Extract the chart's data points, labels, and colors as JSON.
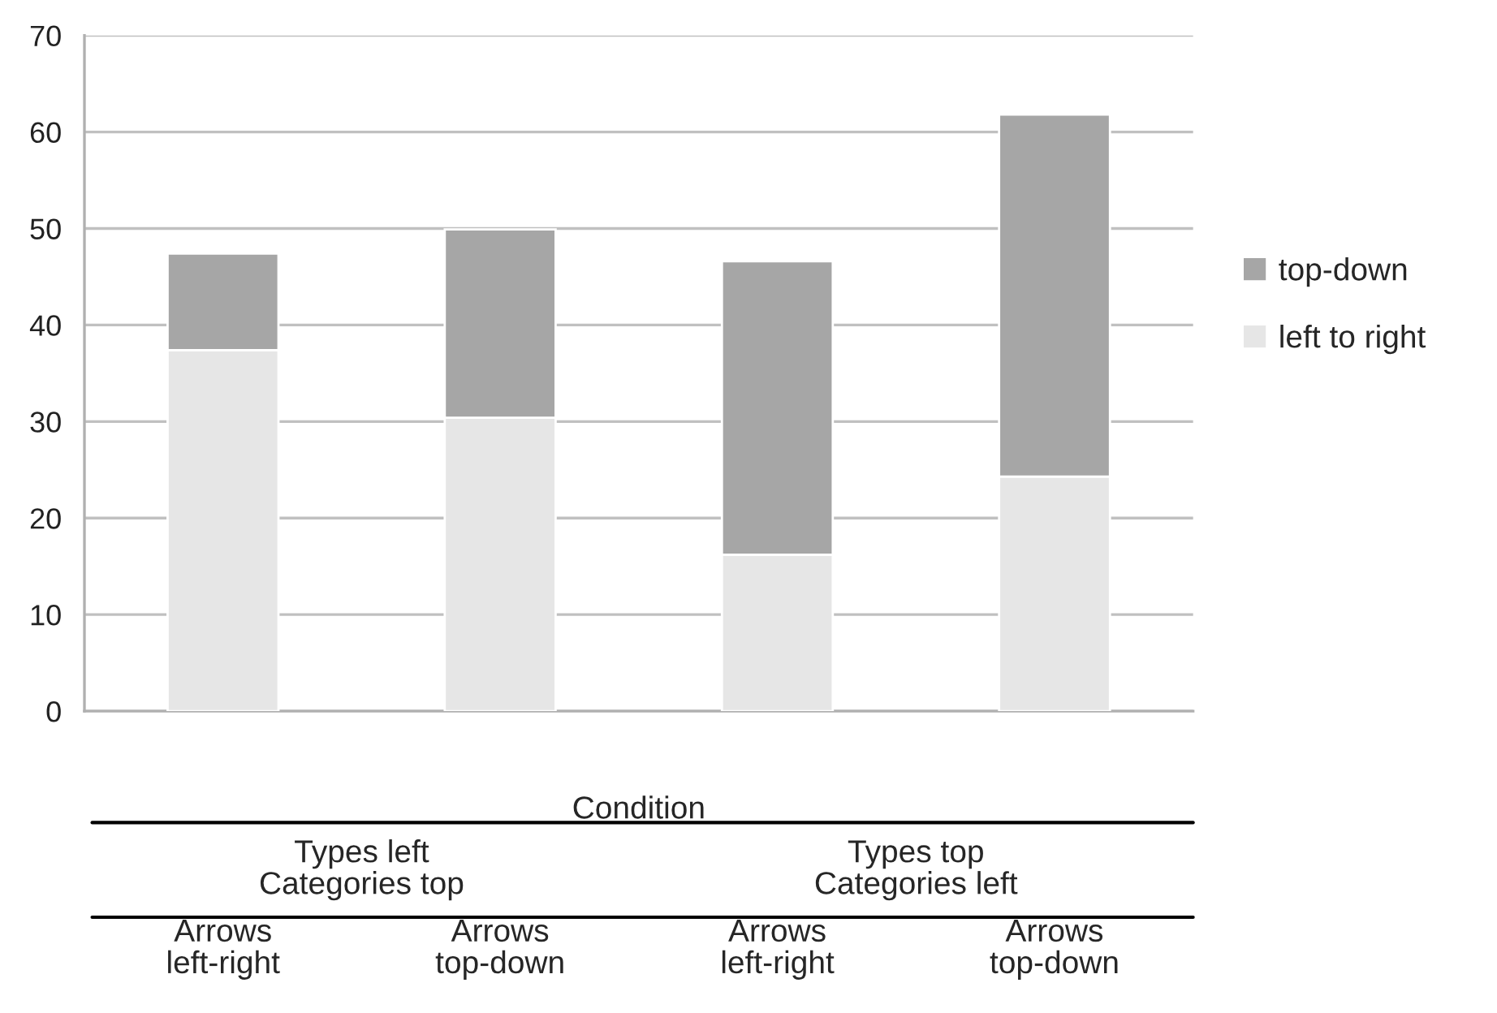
{
  "chart_data": {
    "type": "bar",
    "stacked": true,
    "xlabel": "Condition",
    "categories": [
      "Arrows\nleft-right",
      "Arrows\ntop-down",
      "Arrows\nleft-right",
      "Arrows\ntop-down"
    ],
    "series": [
      {
        "name": "left to right",
        "color": "#e6e6e6",
        "values": [
          37.4,
          30.4,
          16.2,
          24.3
        ]
      },
      {
        "name": "top-down",
        "color": "#a6a6a6",
        "values": [
          10.0,
          19.5,
          30.4,
          37.5
        ]
      }
    ],
    "annotations": [
      "Types left\nCategories top",
      "Types top\nCategories left"
    ],
    "ylim": [
      0,
      70
    ],
    "yticks": [
      0,
      10,
      20,
      30,
      40,
      50,
      60,
      70
    ],
    "grid": "y",
    "legend": "right"
  }
}
